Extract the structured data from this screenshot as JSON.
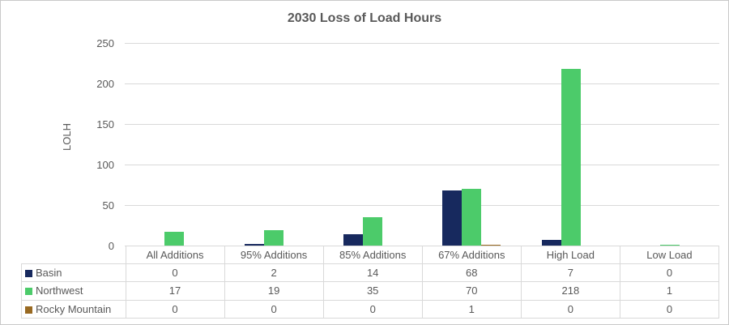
{
  "chart_data": {
    "type": "bar",
    "title": "2030 Loss of Load Hours",
    "ylabel": "LOLH",
    "xlabel": "",
    "grid": true,
    "legend_position": "data-table-left",
    "categories": [
      "All Additions",
      "95% Additions",
      "85% Additions",
      "67% Additions",
      "High Load",
      "Low Load"
    ],
    "series": [
      {
        "name": "Basin",
        "color": "#17295e",
        "values": [
          0,
          2,
          14,
          68,
          7,
          0
        ]
      },
      {
        "name": "Northwest",
        "color": "#4ccb6a",
        "values": [
          17,
          19,
          35,
          70,
          218,
          1
        ]
      },
      {
        "name": "Rocky Mountain",
        "color": "#996a22",
        "values": [
          0,
          0,
          0,
          1,
          0,
          0
        ]
      }
    ],
    "y_axis": {
      "min": 0,
      "max": 250,
      "tick_step": 50,
      "ticks": [
        0,
        50,
        100,
        150,
        200,
        250
      ]
    },
    "colors": {
      "grid": "#d9d9d9",
      "text": "#595959",
      "frame_border": "#c9c9c9",
      "background": "#ffffff"
    }
  }
}
